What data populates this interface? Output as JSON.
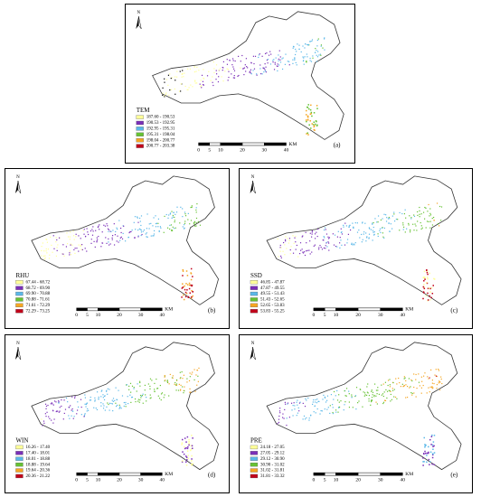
{
  "north": "N",
  "scale_bar": {
    "labels": [
      "0",
      "5",
      "10",
      "20",
      "30",
      "40"
    ],
    "unit": "KM"
  },
  "legend_colors": [
    "#ffff99",
    "#7a2fb8",
    "#5bb8e8",
    "#66c233",
    "#f5a623",
    "#c0001a"
  ],
  "panels": [
    {
      "label": "(a)",
      "legend_title": "TEM",
      "legend": [
        "187.60 - 190.53",
        "190.53 - 192.95",
        "192.95 - 195.31",
        "195.31 - 198.04",
        "198.04 - 200.77",
        "200.77 - 203.38"
      ]
    },
    {
      "label": "(b)",
      "legend_title": "RHU",
      "legend": [
        "67.44 - 68.72",
        "68.72 - 69.90",
        "69.90 - 70.88",
        "70.88 - 71.61",
        "71.61 - 72.29",
        "72.29 - 73.25"
      ]
    },
    {
      "label": "(c)",
      "legend_title": "SSD",
      "legend": [
        "46.85 - 47.87",
        "47.87 - 49.55",
        "49.55 - 51.43",
        "51.43 - 52.65",
        "52.65 - 53.83",
        "53.83 - 55.25"
      ]
    },
    {
      "label": "(d)",
      "legend_title": "WIN",
      "legend": [
        "16.26 - 17.40",
        "17.40 - 18.01",
        "18.01 - 18.88",
        "18.88 - 19.64",
        "19.64 - 20.36",
        "20.36 - 21.22"
      ]
    },
    {
      "label": "(e)",
      "legend_title": "PRE",
      "legend": [
        "24.18 - 27.05",
        "27.05 - 29.12",
        "29.12 - 30.90",
        "30.90 - 31.02",
        "31.02 - 31.81",
        "31.81 - 33.32"
      ]
    }
  ]
}
